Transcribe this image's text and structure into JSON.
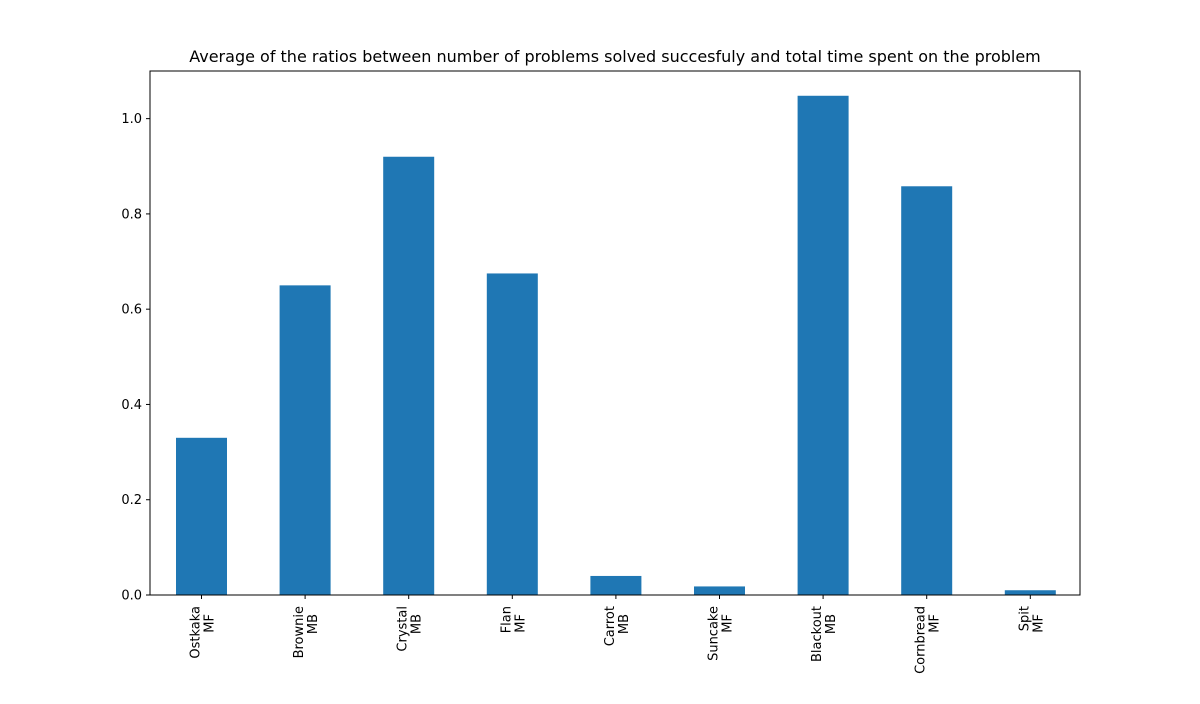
{
  "chart_data": {
    "type": "bar",
    "title": "Average of the ratios between number of problems solved succesfuly and total time spent on the problem",
    "xlabel": "",
    "ylabel": "",
    "categories": [
      [
        "Ostkaka",
        "MF"
      ],
      [
        "Brownie",
        "MB"
      ],
      [
        "Crystal",
        "MB"
      ],
      [
        "Flan",
        "MF"
      ],
      [
        "Carrot",
        "MB"
      ],
      [
        "Suncake",
        "MF"
      ],
      [
        "Blackout",
        "MB"
      ],
      [
        "Cornbread",
        "MF"
      ],
      [
        "Spit",
        "MF"
      ]
    ],
    "values": [
      0.33,
      0.65,
      0.92,
      0.675,
      0.04,
      0.018,
      1.048,
      0.858,
      0.01
    ],
    "ylim": [
      0,
      1.1
    ],
    "yticks": [
      0.0,
      0.2,
      0.4,
      0.6,
      0.8,
      1.0
    ],
    "ytick_labels": [
      "0.0",
      "0.2",
      "0.4",
      "0.6",
      "0.8",
      "1.0"
    ],
    "grid": false,
    "legend": "none",
    "bar_color": "#1f77b4"
  }
}
